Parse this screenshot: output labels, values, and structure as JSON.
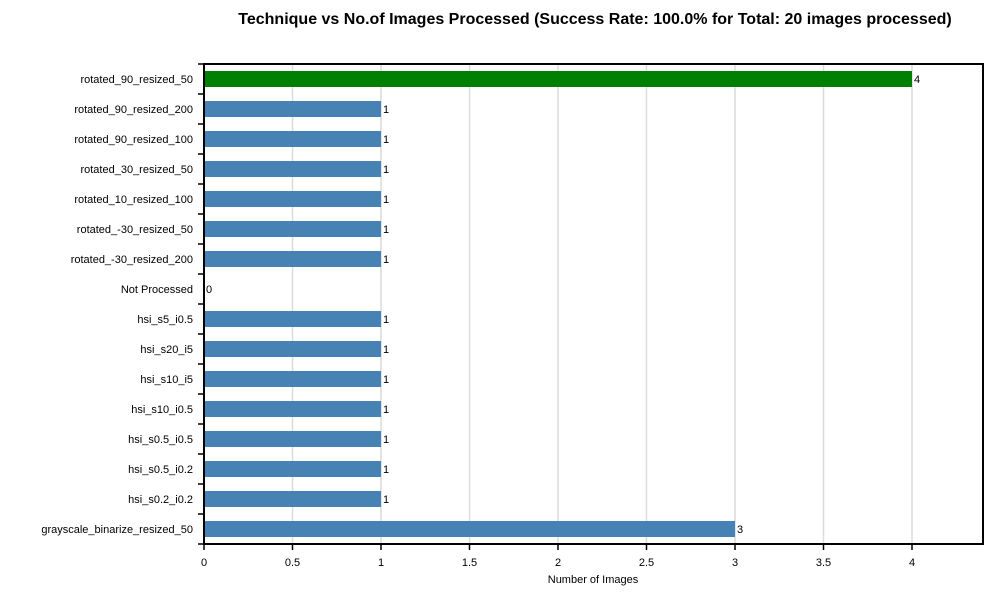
{
  "chart_data": {
    "type": "bar",
    "orientation": "horizontal",
    "title": "Technique vs No.of Images Processed (Success Rate: 100.0% for Total: 20 images processed)",
    "xlabel": "Number of Images",
    "ylabel": "",
    "xlim": [
      0,
      4.4
    ],
    "xticks": [
      0,
      0.5,
      1,
      1.5,
      2,
      2.5,
      3,
      3.5,
      4
    ],
    "grid": "vertical",
    "default_color": "#4682b4",
    "highlight_color": "#008000",
    "categories": [
      "rotated_90_resized_50",
      "rotated_90_resized_200",
      "rotated_90_resized_100",
      "rotated_30_resized_50",
      "rotated_10_resized_100",
      "rotated_-30_resized_50",
      "rotated_-30_resized_200",
      "Not Processed",
      "hsi_s5_i0.5",
      "hsi_s20_i5",
      "hsi_s10_i5",
      "hsi_s10_i0.5",
      "hsi_s0.5_i0.5",
      "hsi_s0.5_i0.2",
      "hsi_s0.2_i0.2",
      "grayscale_binarize_resized_50"
    ],
    "values": [
      4,
      1,
      1,
      1,
      1,
      1,
      1,
      0,
      1,
      1,
      1,
      1,
      1,
      1,
      1,
      3
    ],
    "highlight_index": 0
  }
}
